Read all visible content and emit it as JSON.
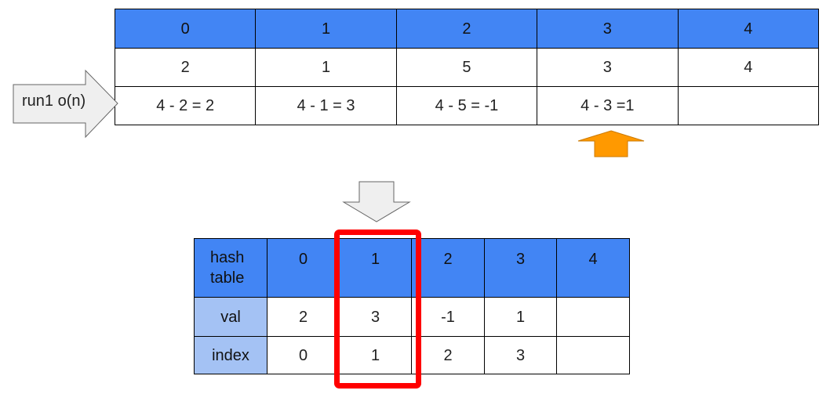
{
  "top_table": {
    "index_row": [
      "0",
      "1",
      "2",
      "3",
      "4"
    ],
    "value_row": [
      "2",
      "1",
      "5",
      "3",
      "4"
    ],
    "diff_row": [
      "4 - 2 = 2",
      "4 - 1 = 3",
      "4 - 5 = -1",
      "4 - 3 =1",
      ""
    ]
  },
  "run_arrow": {
    "label": "run1 o(n)",
    "color": "#efefef"
  },
  "pointer_arrow": {
    "color": "#ff9900",
    "points_to_column": "3"
  },
  "down_arrow": {
    "color": "#efefef"
  },
  "hash_table": {
    "header_label": "hash table",
    "header_cols": [
      "0",
      "1",
      "2",
      "3",
      "4"
    ],
    "rows": [
      {
        "label": "val",
        "cells": [
          "2",
          "3",
          "-1",
          "1",
          ""
        ]
      },
      {
        "label": "index",
        "cells": [
          "0",
          "1",
          "2",
          "3",
          ""
        ]
      }
    ],
    "highlight": {
      "column": "1",
      "color": "#ff0000"
    }
  },
  "colors": {
    "header_blue": "#4285f4",
    "label_blue": "#a4c2f4"
  }
}
